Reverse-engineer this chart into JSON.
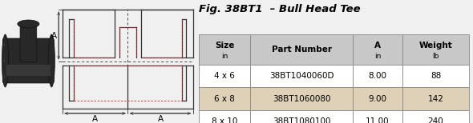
{
  "title": "Fig. 38BT1  – Bull Head Tee",
  "columns_top": [
    "Size",
    "Part Number",
    "A",
    "Weight"
  ],
  "columns_bot": [
    "in",
    "",
    "in",
    "lb"
  ],
  "rows": [
    [
      "4 x 6",
      "38BT1040060D",
      "8.00",
      "88"
    ],
    [
      "6 x 8",
      "38BT1060080",
      "9.00",
      "142"
    ],
    [
      "8 x 10",
      "38BT1080100",
      "11.00",
      "240"
    ]
  ],
  "highlight_row": 1,
  "header_bg": "#c8c8c8",
  "highlight_bg": "#dfd0b8",
  "normal_bg": "#ffffff",
  "border_color": "#888888",
  "title_color": "#000000",
  "text_color": "#000000",
  "background_color": "#f0f0f0"
}
